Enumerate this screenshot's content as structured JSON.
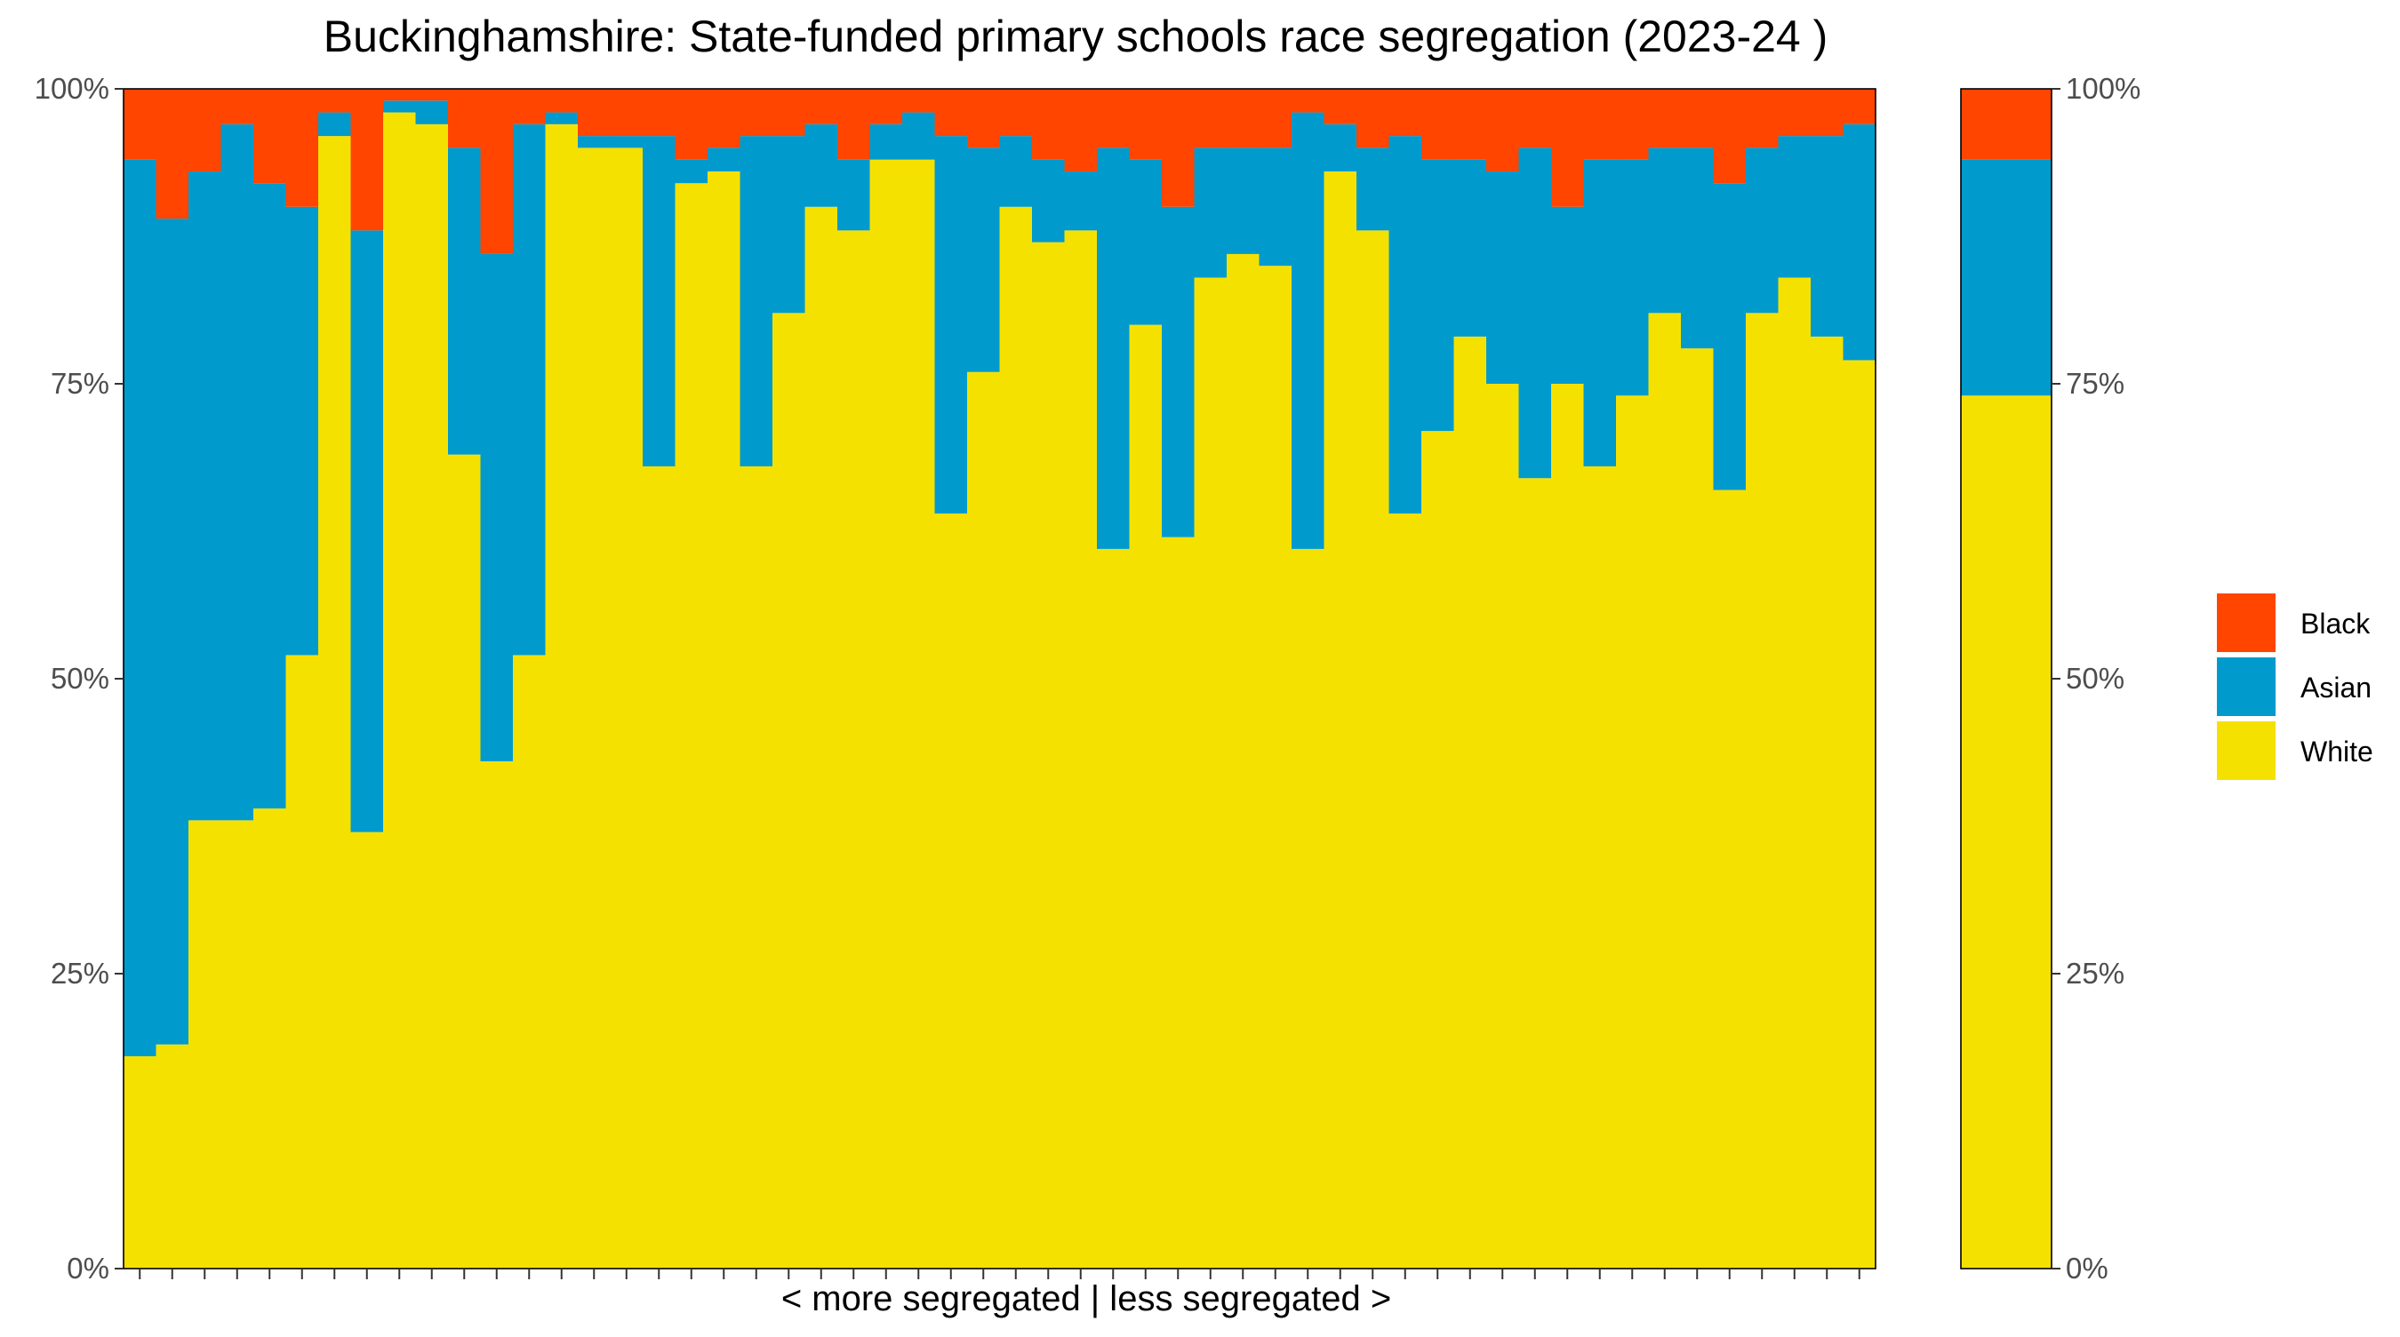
{
  "chart_data": {
    "type": "bar",
    "stacked": true,
    "title": "Buckinghamshire: State-funded primary schools race segregation (2023-24 )",
    "xlabel": "< more segregated | less segregated >",
    "ylabel": "",
    "ylim": [
      0,
      1
    ],
    "y_ticks": [
      "0%",
      "25%",
      "50%",
      "75%",
      "100%"
    ],
    "grid": false,
    "legend_position": "right",
    "colors": {
      "Black": "#ff4500",
      "Asian": "#009acd",
      "White": "#f5e100"
    },
    "series": [
      {
        "name": "Black",
        "values": [
          0.06,
          0.11,
          0.07,
          0.03,
          0.08,
          0.1,
          0.02,
          0.12,
          0.01,
          0.01,
          0.05,
          0.14,
          0.03,
          0.02,
          0.04,
          0.04,
          0.04,
          0.06,
          0.05,
          0.04,
          0.04,
          0.03,
          0.06,
          0.03,
          0.02,
          0.04,
          0.05,
          0.04,
          0.06,
          0.07,
          0.05,
          0.06,
          0.1,
          0.05,
          0.05,
          0.05,
          0.02,
          0.03,
          0.05,
          0.04,
          0.06,
          0.06,
          0.07,
          0.05,
          0.1,
          0.06,
          0.06,
          0.05,
          0.05,
          0.08,
          0.05,
          0.04,
          0.04,
          0.03
        ]
      },
      {
        "name": "Asian",
        "values": [
          0.76,
          0.7,
          0.55,
          0.59,
          0.53,
          0.38,
          0.02,
          0.51,
          0.01,
          0.02,
          0.26,
          0.43,
          0.45,
          0.01,
          0.01,
          0.01,
          0.28,
          0.02,
          0.02,
          0.28,
          0.15,
          0.07,
          0.06,
          0.03,
          0.04,
          0.32,
          0.19,
          0.06,
          0.07,
          0.05,
          0.34,
          0.14,
          0.28,
          0.11,
          0.09,
          0.1,
          0.37,
          0.04,
          0.07,
          0.32,
          0.23,
          0.15,
          0.18,
          0.28,
          0.15,
          0.26,
          0.2,
          0.14,
          0.17,
          0.26,
          0.14,
          0.12,
          0.17,
          0.2
        ]
      },
      {
        "name": "White",
        "values": [
          0.18,
          0.19,
          0.38,
          0.38,
          0.39,
          0.52,
          0.96,
          0.37,
          0.98,
          0.97,
          0.69,
          0.43,
          0.52,
          0.97,
          0.95,
          0.95,
          0.68,
          0.92,
          0.93,
          0.68,
          0.81,
          0.9,
          0.88,
          0.94,
          0.94,
          0.64,
          0.76,
          0.9,
          0.87,
          0.88,
          0.61,
          0.8,
          0.62,
          0.84,
          0.86,
          0.85,
          0.61,
          0.93,
          0.88,
          0.64,
          0.71,
          0.79,
          0.75,
          0.67,
          0.75,
          0.68,
          0.74,
          0.81,
          0.78,
          0.66,
          0.81,
          0.84,
          0.79,
          0.77
        ]
      }
    ],
    "summary_bar": {
      "Black": 0.06,
      "Asian": 0.2,
      "White": 0.74
    }
  }
}
